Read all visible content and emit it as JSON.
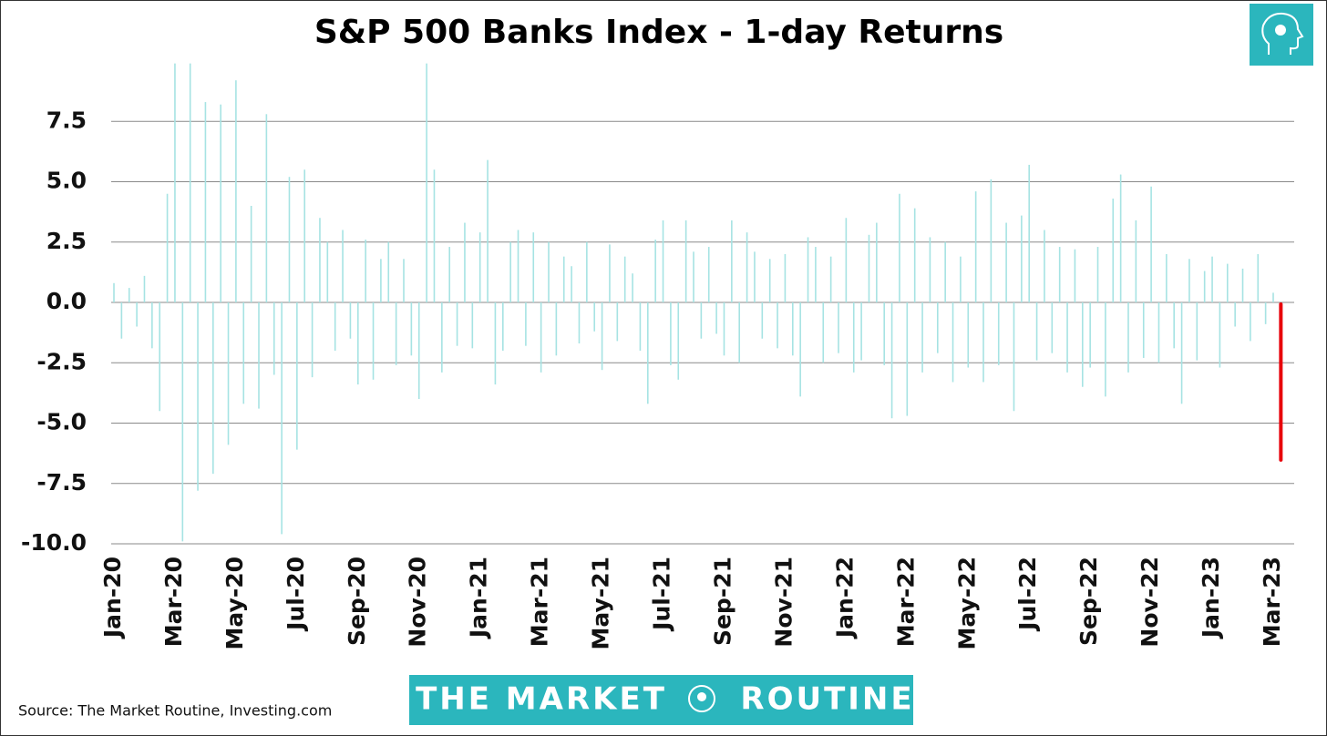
{
  "chart_data": {
    "type": "bar",
    "title": "S&P 500 Banks Index - 1-day Returns",
    "source": "Source: The Market Routine, Investing.com",
    "brand_left": "THE MARKET",
    "brand_right": "ROUTINE",
    "color": "#a6e3e3",
    "last_color": "#e8000b",
    "grid": true,
    "ylim": [
      -10,
      10
    ],
    "yticks": [
      {
        "value": -10,
        "label": "-10.0"
      },
      -7.5,
      {
        "value": -5,
        "label": "-5.0"
      },
      -2.5,
      {
        "value": 0,
        "label": "0.0"
      },
      2.5,
      {
        "value": 5,
        "label": "5.0"
      },
      7.5
    ],
    "categories": [
      "Jan-20",
      null,
      null,
      null,
      null,
      null,
      null,
      null,
      "Mar-20",
      null,
      null,
      null,
      null,
      null,
      null,
      null,
      "May-20",
      null,
      null,
      null,
      null,
      null,
      null,
      null,
      "Jul-20",
      null,
      null,
      null,
      null,
      null,
      null,
      null,
      "Sep-20",
      null,
      null,
      null,
      null,
      null,
      null,
      null,
      "Nov-20",
      null,
      null,
      null,
      null,
      null,
      null,
      null,
      "Jan-21",
      null,
      null,
      null,
      null,
      null,
      null,
      null,
      "Mar-21",
      null,
      null,
      null,
      null,
      null,
      null,
      null,
      "May-21",
      null,
      null,
      null,
      null,
      null,
      null,
      null,
      "Jul-21",
      null,
      null,
      null,
      null,
      null,
      null,
      null,
      "Sep-21",
      null,
      null,
      null,
      null,
      null,
      null,
      null,
      "Nov-21",
      null,
      null,
      null,
      null,
      null,
      null,
      null,
      "Jan-22",
      null,
      null,
      null,
      null,
      null,
      null,
      null,
      "Mar-22",
      null,
      null,
      null,
      null,
      null,
      null,
      null,
      "May-22",
      null,
      null,
      null,
      null,
      null,
      null,
      null,
      "Jul-22",
      null,
      null,
      null,
      null,
      null,
      null,
      null,
      "Sep-22",
      null,
      null,
      null,
      null,
      null,
      null,
      null,
      "Nov-22",
      null,
      null,
      null,
      null,
      null,
      null,
      null,
      "Jan-23",
      null,
      null,
      null,
      null,
      null,
      null,
      null,
      "Mar-23",
      null
    ],
    "values": [
      0.8,
      -1.5,
      0.6,
      -1.0,
      1.1,
      -1.9,
      -4.5,
      4.5,
      9.9,
      -9.9,
      9.9,
      -7.8,
      8.3,
      -7.1,
      8.2,
      -5.9,
      9.2,
      -4.2,
      4.0,
      -4.4,
      7.8,
      -3.0,
      -9.6,
      5.2,
      -6.1,
      5.5,
      -3.1,
      3.5,
      2.5,
      -2.0,
      3.0,
      -1.5,
      -3.4,
      2.6,
      -3.2,
      1.8,
      2.5,
      -2.6,
      1.8,
      -2.2,
      -4.0,
      9.9,
      5.5,
      -2.9,
      2.3,
      -1.8,
      3.3,
      -1.9,
      2.9,
      5.9,
      -3.4,
      -2.0,
      2.5,
      3.0,
      -1.8,
      2.9,
      -2.9,
      2.5,
      -2.2,
      1.9,
      1.5,
      -1.7,
      2.5,
      -1.2,
      -2.8,
      2.4,
      -1.6,
      1.9,
      1.2,
      -2.0,
      -4.2,
      2.6,
      3.4,
      -2.6,
      -3.2,
      3.4,
      2.1,
      -1.5,
      2.3,
      -1.3,
      -2.2,
      3.4,
      -2.5,
      2.9,
      2.1,
      -1.5,
      1.8,
      -1.9,
      2.0,
      -2.2,
      -3.9,
      2.7,
      2.3,
      -2.5,
      1.9,
      -2.1,
      3.5,
      -2.9,
      -2.4,
      2.8,
      3.3,
      -2.6,
      -4.8,
      4.5,
      -4.7,
      3.9,
      -2.9,
      2.7,
      -2.1,
      2.5,
      -3.3,
      1.9,
      -2.7,
      4.6,
      -3.3,
      5.1,
      -2.6,
      3.3,
      -4.5,
      3.6,
      5.7,
      -2.4,
      3.0,
      -2.1,
      2.3,
      -2.9,
      2.2,
      -3.5,
      -2.7,
      2.3,
      -3.9,
      4.3,
      5.3,
      -2.9,
      3.4,
      -2.3,
      4.8,
      -2.5,
      2.0,
      -1.9,
      -4.2,
      1.8,
      -2.4,
      1.3,
      1.9,
      -2.7,
      1.6,
      -1.0,
      1.4,
      -1.6,
      2.0,
      -0.9,
      0.4,
      -6.6
    ]
  }
}
